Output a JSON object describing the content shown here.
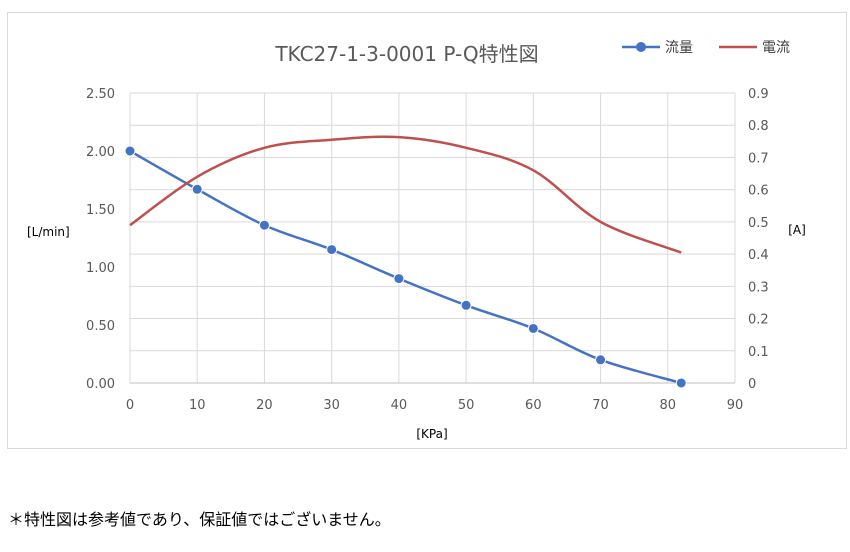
{
  "chart_data": {
    "type": "line",
    "title": "TKC27-1-3-0001 P-Q特性図",
    "xlabel": "[KPa]",
    "ylabel": "[L/min]",
    "y2label": "[A]",
    "xlim": [
      0,
      90
    ],
    "ylim": [
      0,
      2.5
    ],
    "y2lim": [
      0,
      0.9
    ],
    "xticks": [
      "0",
      "10",
      "20",
      "30",
      "40",
      "50",
      "60",
      "70",
      "80",
      "90"
    ],
    "yticks": [
      "0.00",
      "0.50",
      "1.00",
      "1.50",
      "2.00",
      "2.50"
    ],
    "y2ticks": [
      "0",
      "0.1",
      "0.2",
      "0.3",
      "0.4",
      "0.5",
      "0.6",
      "0.7",
      "0.8",
      "0.9"
    ],
    "grid": true,
    "legend_position": "top-right",
    "series": [
      {
        "name": "流量",
        "axis": "left",
        "color": "#4472c4",
        "markers": true,
        "x": [
          0,
          10,
          20,
          30,
          40,
          50,
          60,
          70,
          82
        ],
        "y": [
          2.0,
          1.67,
          1.36,
          1.15,
          0.9,
          0.67,
          0.47,
          0.2,
          0.0
        ]
      },
      {
        "name": "電流",
        "axis": "right",
        "color": "#c0504d",
        "markers": false,
        "x": [
          0,
          10,
          20,
          30,
          40,
          50,
          60,
          70,
          82
        ],
        "y": [
          0.49,
          0.64,
          0.73,
          0.755,
          0.763,
          0.73,
          0.66,
          0.5,
          0.405
        ]
      }
    ]
  },
  "footnote": "＊特性図は参考値であり、保証値ではございません。"
}
